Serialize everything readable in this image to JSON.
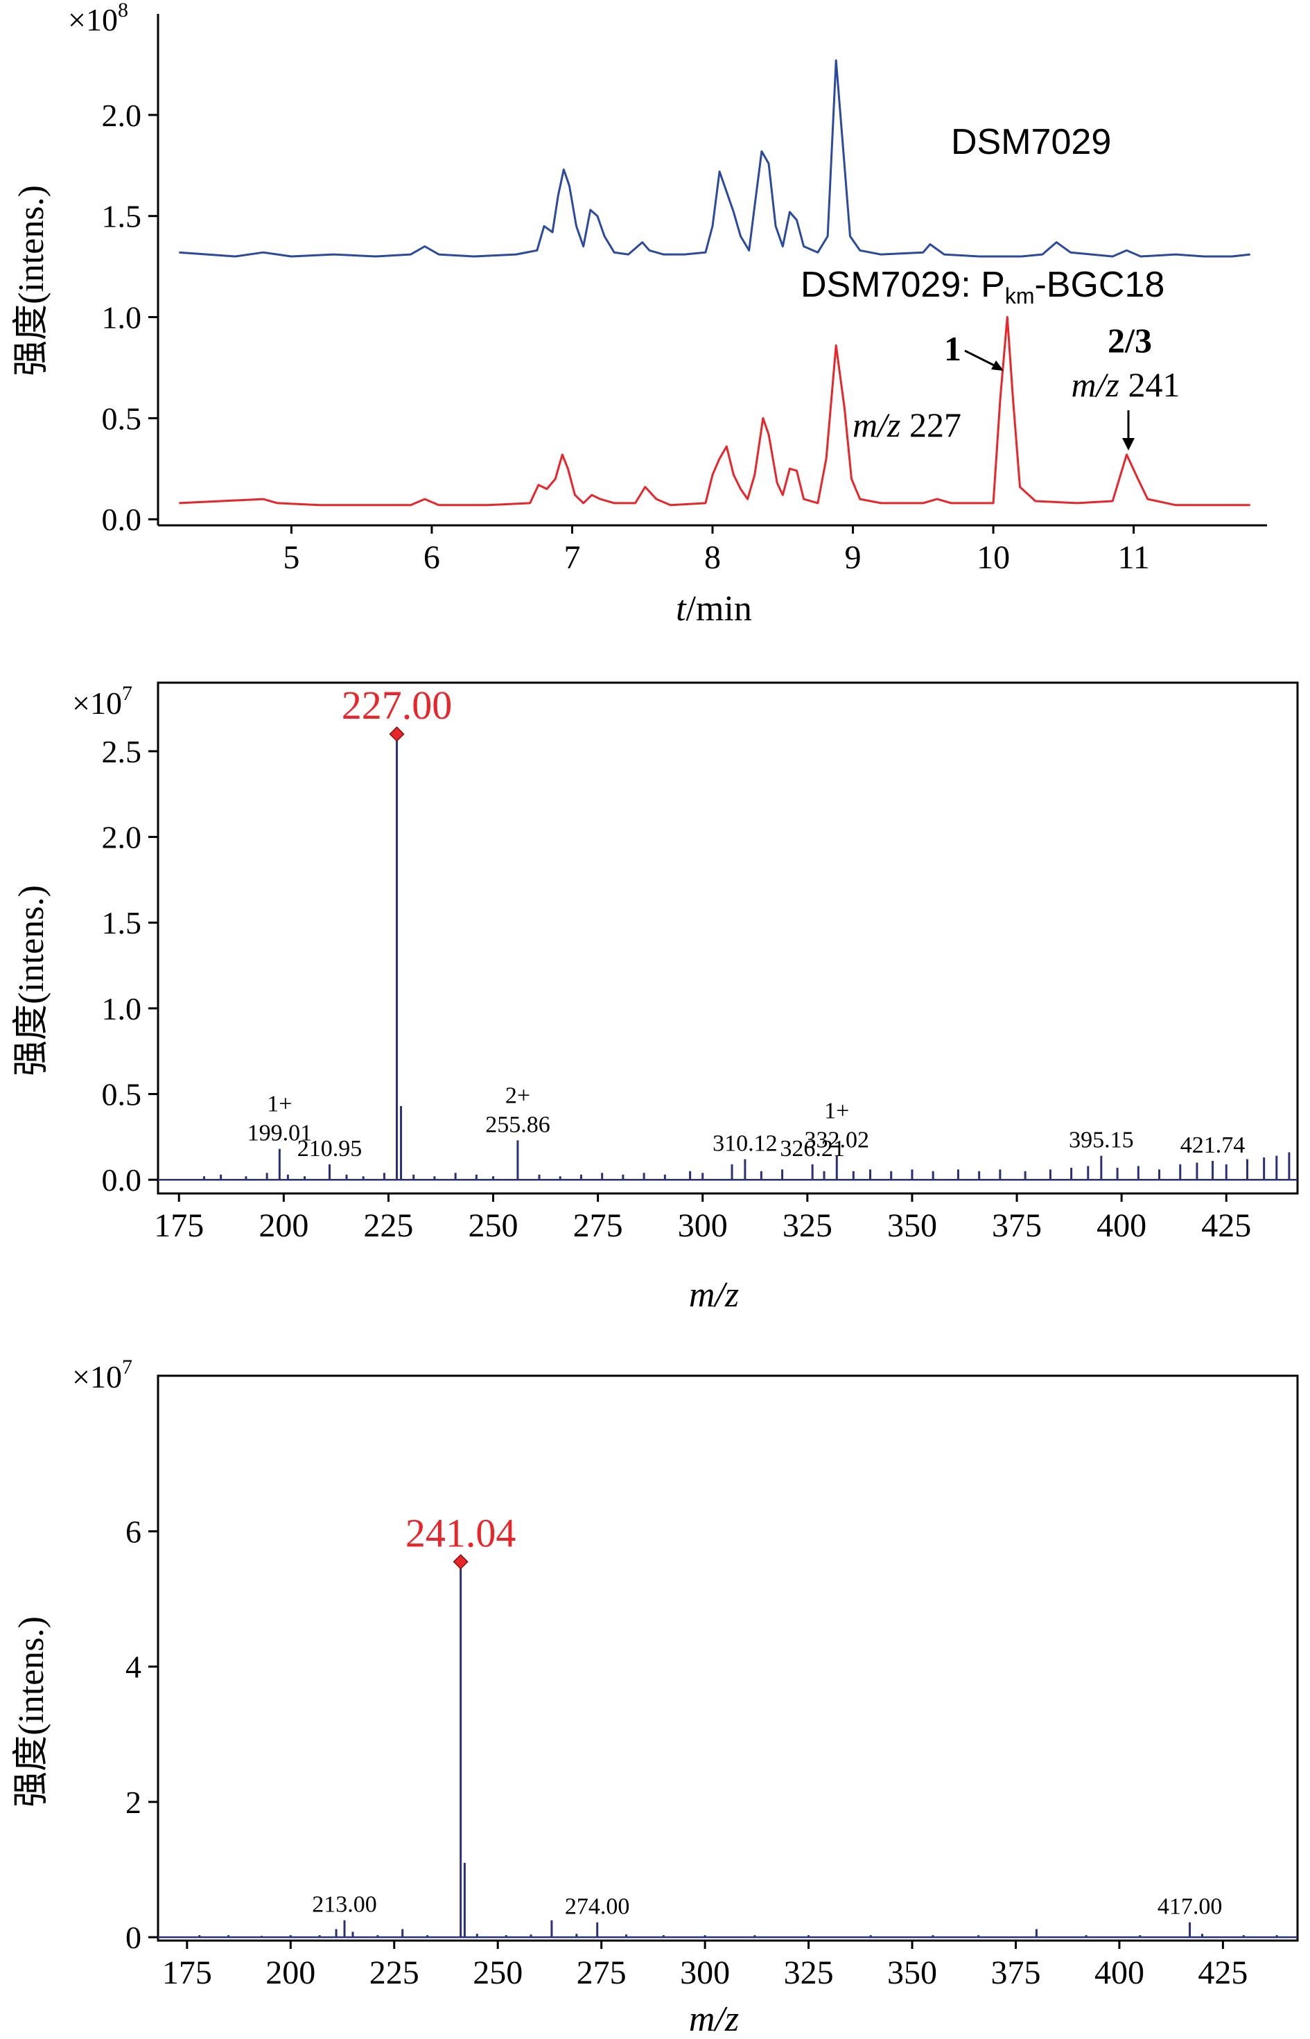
{
  "colors": {
    "blue": "#2b4a9e",
    "red": "#e8262a",
    "axis": "#000000",
    "spectrum": "#2a2f7a",
    "peak_marker": "#e8262a"
  },
  "chart_data": [
    {
      "type": "line",
      "title": "",
      "xlabel_italic": "t",
      "xlabel_rest": "/min",
      "ylabel": "强度(intens.)",
      "y_multiplier_base": "×10",
      "y_multiplier_exp": "8",
      "xlim": [
        4.05,
        11.95
      ],
      "ylim": [
        -0.03,
        2.5
      ],
      "x_ticks": [
        5,
        6,
        7,
        8,
        9,
        10,
        11
      ],
      "y_ticks": [
        0.0,
        0.5,
        1.0,
        1.5,
        2.0
      ],
      "y_tick_labels": [
        "0.0",
        "0.5",
        "1.0",
        "1.5",
        "2.0"
      ],
      "series": [
        {
          "name": "DSM7029",
          "color": "#2b4a9e",
          "points": [
            [
              4.2,
              1.32
            ],
            [
              4.4,
              1.31
            ],
            [
              4.6,
              1.3
            ],
            [
              4.8,
              1.32
            ],
            [
              5.0,
              1.3
            ],
            [
              5.3,
              1.31
            ],
            [
              5.6,
              1.3
            ],
            [
              5.85,
              1.31
            ],
            [
              5.95,
              1.35
            ],
            [
              6.05,
              1.31
            ],
            [
              6.3,
              1.3
            ],
            [
              6.6,
              1.31
            ],
            [
              6.75,
              1.33
            ],
            [
              6.8,
              1.45
            ],
            [
              6.86,
              1.42
            ],
            [
              6.9,
              1.6
            ],
            [
              6.94,
              1.73
            ],
            [
              6.98,
              1.65
            ],
            [
              7.03,
              1.45
            ],
            [
              7.08,
              1.35
            ],
            [
              7.13,
              1.53
            ],
            [
              7.18,
              1.5
            ],
            [
              7.23,
              1.4
            ],
            [
              7.3,
              1.32
            ],
            [
              7.4,
              1.31
            ],
            [
              7.5,
              1.37
            ],
            [
              7.55,
              1.33
            ],
            [
              7.65,
              1.31
            ],
            [
              7.8,
              1.31
            ],
            [
              7.95,
              1.32
            ],
            [
              8.0,
              1.45
            ],
            [
              8.05,
              1.72
            ],
            [
              8.1,
              1.62
            ],
            [
              8.15,
              1.52
            ],
            [
              8.2,
              1.4
            ],
            [
              8.26,
              1.33
            ],
            [
              8.3,
              1.55
            ],
            [
              8.35,
              1.82
            ],
            [
              8.4,
              1.76
            ],
            [
              8.45,
              1.45
            ],
            [
              8.5,
              1.35
            ],
            [
              8.55,
              1.52
            ],
            [
              8.6,
              1.48
            ],
            [
              8.65,
              1.35
            ],
            [
              8.75,
              1.32
            ],
            [
              8.82,
              1.4
            ],
            [
              8.88,
              2.27
            ],
            [
              8.94,
              1.75
            ],
            [
              8.98,
              1.4
            ],
            [
              9.05,
              1.33
            ],
            [
              9.2,
              1.31
            ],
            [
              9.5,
              1.32
            ],
            [
              9.55,
              1.36
            ],
            [
              9.65,
              1.31
            ],
            [
              9.9,
              1.3
            ],
            [
              10.2,
              1.3
            ],
            [
              10.35,
              1.31
            ],
            [
              10.45,
              1.37
            ],
            [
              10.55,
              1.32
            ],
            [
              10.7,
              1.31
            ],
            [
              10.85,
              1.3
            ],
            [
              10.95,
              1.33
            ],
            [
              11.05,
              1.3
            ],
            [
              11.3,
              1.31
            ],
            [
              11.5,
              1.3
            ],
            [
              11.7,
              1.3
            ],
            [
              11.83,
              1.31
            ]
          ]
        },
        {
          "name": "DSM7029: Pkm-BGC18",
          "color": "#e8262a",
          "points": [
            [
              4.2,
              0.08
            ],
            [
              4.5,
              0.09
            ],
            [
              4.8,
              0.1
            ],
            [
              4.9,
              0.08
            ],
            [
              5.2,
              0.07
            ],
            [
              5.6,
              0.07
            ],
            [
              5.85,
              0.07
            ],
            [
              5.95,
              0.1
            ],
            [
              6.05,
              0.07
            ],
            [
              6.4,
              0.07
            ],
            [
              6.7,
              0.08
            ],
            [
              6.76,
              0.17
            ],
            [
              6.82,
              0.15
            ],
            [
              6.88,
              0.2
            ],
            [
              6.93,
              0.32
            ],
            [
              6.97,
              0.25
            ],
            [
              7.02,
              0.12
            ],
            [
              7.08,
              0.08
            ],
            [
              7.14,
              0.12
            ],
            [
              7.2,
              0.1
            ],
            [
              7.3,
              0.08
            ],
            [
              7.45,
              0.08
            ],
            [
              7.52,
              0.16
            ],
            [
              7.6,
              0.1
            ],
            [
              7.7,
              0.07
            ],
            [
              7.95,
              0.08
            ],
            [
              8.0,
              0.22
            ],
            [
              8.05,
              0.3
            ],
            [
              8.1,
              0.36
            ],
            [
              8.15,
              0.22
            ],
            [
              8.2,
              0.15
            ],
            [
              8.25,
              0.1
            ],
            [
              8.3,
              0.22
            ],
            [
              8.36,
              0.5
            ],
            [
              8.4,
              0.42
            ],
            [
              8.46,
              0.18
            ],
            [
              8.5,
              0.12
            ],
            [
              8.55,
              0.25
            ],
            [
              8.6,
              0.24
            ],
            [
              8.65,
              0.1
            ],
            [
              8.75,
              0.08
            ],
            [
              8.81,
              0.3
            ],
            [
              8.88,
              0.86
            ],
            [
              8.94,
              0.55
            ],
            [
              8.99,
              0.2
            ],
            [
              9.05,
              0.1
            ],
            [
              9.2,
              0.08
            ],
            [
              9.5,
              0.08
            ],
            [
              9.6,
              0.1
            ],
            [
              9.7,
              0.08
            ],
            [
              10.0,
              0.08
            ],
            [
              10.05,
              0.6
            ],
            [
              10.1,
              1.0
            ],
            [
              10.14,
              0.6
            ],
            [
              10.19,
              0.16
            ],
            [
              10.3,
              0.09
            ],
            [
              10.6,
              0.08
            ],
            [
              10.85,
              0.09
            ],
            [
              10.95,
              0.32
            ],
            [
              11.03,
              0.2
            ],
            [
              11.1,
              0.1
            ],
            [
              11.3,
              0.07
            ],
            [
              11.6,
              0.07
            ],
            [
              11.83,
              0.07
            ]
          ]
        }
      ],
      "series_labels": {
        "blue": "DSM7029",
        "red_main": "DSM7029: P",
        "red_sub": "km",
        "red_tail": "-BGC18"
      },
      "annotations": {
        "peak1_number": "1",
        "peak1_mz_italic": "m/z",
        "peak1_mz_value": " 227",
        "peak23_number": "2/3",
        "peak23_mz_italic": "m/z",
        "peak23_mz_value": " 241"
      }
    },
    {
      "type": "bar",
      "title": "",
      "xlabel": "m/z",
      "ylabel": "强度(intens.)",
      "y_multiplier_base": "×10",
      "y_multiplier_exp": "7",
      "xlim": [
        170,
        442
      ],
      "ylim": [
        -0.08,
        2.9
      ],
      "x_ticks": [
        175,
        200,
        225,
        250,
        275,
        300,
        325,
        350,
        375,
        400,
        425
      ],
      "y_ticks": [
        0.0,
        0.5,
        1.0,
        1.5,
        2.0,
        2.5
      ],
      "y_tick_labels": [
        "0.0",
        "0.5",
        "1.0",
        "1.5",
        "2.0",
        "2.5"
      ],
      "peaks": [
        [
          181,
          0.02
        ],
        [
          185,
          0.03
        ],
        [
          191,
          0.02
        ],
        [
          196,
          0.04
        ],
        [
          199.01,
          0.18
        ],
        [
          201,
          0.03
        ],
        [
          205,
          0.02
        ],
        [
          210.95,
          0.09
        ],
        [
          215,
          0.03
        ],
        [
          219,
          0.02
        ],
        [
          224,
          0.04
        ],
        [
          227.0,
          2.6
        ],
        [
          228,
          0.43
        ],
        [
          231,
          0.03
        ],
        [
          236,
          0.02
        ],
        [
          241,
          0.04
        ],
        [
          246,
          0.03
        ],
        [
          250,
          0.02
        ],
        [
          255.86,
          0.23
        ],
        [
          261,
          0.03
        ],
        [
          266,
          0.02
        ],
        [
          271,
          0.03
        ],
        [
          276,
          0.04
        ],
        [
          281,
          0.03
        ],
        [
          286,
          0.04
        ],
        [
          291,
          0.03
        ],
        [
          297,
          0.05
        ],
        [
          300,
          0.04
        ],
        [
          307,
          0.09
        ],
        [
          310.12,
          0.12
        ],
        [
          314,
          0.05
        ],
        [
          319,
          0.06
        ],
        [
          326.21,
          0.09
        ],
        [
          329,
          0.05
        ],
        [
          332.02,
          0.14
        ],
        [
          336,
          0.05
        ],
        [
          340,
          0.06
        ],
        [
          345,
          0.05
        ],
        [
          350,
          0.06
        ],
        [
          355,
          0.05
        ],
        [
          361,
          0.06
        ],
        [
          366,
          0.05
        ],
        [
          371,
          0.06
        ],
        [
          377,
          0.05
        ],
        [
          383,
          0.06
        ],
        [
          388,
          0.07
        ],
        [
          392,
          0.08
        ],
        [
          395.15,
          0.14
        ],
        [
          399,
          0.07
        ],
        [
          404,
          0.08
        ],
        [
          409,
          0.06
        ],
        [
          414,
          0.09
        ],
        [
          418,
          0.1
        ],
        [
          421.74,
          0.11
        ],
        [
          425,
          0.09
        ],
        [
          430,
          0.12
        ],
        [
          434,
          0.13
        ],
        [
          437,
          0.14
        ],
        [
          440,
          0.16
        ]
      ],
      "base_peak": {
        "x": 227.0,
        "y": 2.6,
        "label": "227.00"
      },
      "peak_labels": [
        {
          "x": 199.01,
          "y": 0.18,
          "charge": "1+",
          "label": "199.01"
        },
        {
          "x": 210.95,
          "y": 0.09,
          "charge": "",
          "label": "210.95"
        },
        {
          "x": 255.86,
          "y": 0.23,
          "charge": "2+",
          "label": "255.86"
        },
        {
          "x": 310.12,
          "y": 0.12,
          "charge": "",
          "label": "310.12"
        },
        {
          "x": 326.21,
          "y": 0.09,
          "charge": "",
          "label": "326.21"
        },
        {
          "x": 332.02,
          "y": 0.14,
          "charge": "1+",
          "label": "332.02"
        },
        {
          "x": 395.15,
          "y": 0.14,
          "charge": "",
          "label": "395.15"
        },
        {
          "x": 421.74,
          "y": 0.11,
          "charge": "",
          "label": "421.74"
        }
      ]
    },
    {
      "type": "bar",
      "title": "",
      "xlabel": "m/z",
      "ylabel": "强度(intens.)",
      "y_multiplier_base": "×10",
      "y_multiplier_exp": "7",
      "xlim": [
        168,
        443
      ],
      "ylim": [
        -0.05,
        8.3
      ],
      "x_ticks": [
        175,
        200,
        225,
        250,
        275,
        300,
        325,
        350,
        375,
        400,
        425
      ],
      "y_ticks": [
        0,
        2,
        4,
        6
      ],
      "y_tick_labels": [
        "0",
        "2",
        "4",
        "6"
      ],
      "peaks": [
        [
          178,
          0.03
        ],
        [
          185,
          0.03
        ],
        [
          193,
          0.02
        ],
        [
          200,
          0.03
        ],
        [
          207,
          0.03
        ],
        [
          211,
          0.12
        ],
        [
          213.0,
          0.25
        ],
        [
          215,
          0.08
        ],
        [
          221,
          0.03
        ],
        [
          227,
          0.12
        ],
        [
          233,
          0.03
        ],
        [
          241.04,
          5.55
        ],
        [
          242,
          1.1
        ],
        [
          245,
          0.05
        ],
        [
          252,
          0.03
        ],
        [
          258,
          0.04
        ],
        [
          263,
          0.25
        ],
        [
          269,
          0.05
        ],
        [
          274.0,
          0.22
        ],
        [
          281,
          0.04
        ],
        [
          290,
          0.03
        ],
        [
          300,
          0.03
        ],
        [
          312,
          0.03
        ],
        [
          325,
          0.03
        ],
        [
          340,
          0.03
        ],
        [
          355,
          0.03
        ],
        [
          366,
          0.03
        ],
        [
          380,
          0.12
        ],
        [
          392,
          0.03
        ],
        [
          405,
          0.03
        ],
        [
          417.0,
          0.22
        ],
        [
          420,
          0.05
        ],
        [
          430,
          0.03
        ],
        [
          438,
          0.03
        ]
      ],
      "base_peak": {
        "x": 241.04,
        "y": 5.55,
        "label": "241.04"
      },
      "peak_labels": [
        {
          "x": 213.0,
          "y": 0.25,
          "charge": "",
          "label": "213.00"
        },
        {
          "x": 274.0,
          "y": 0.22,
          "charge": "",
          "label": "274.00"
        },
        {
          "x": 417.0,
          "y": 0.22,
          "charge": "",
          "label": "417.00"
        }
      ]
    }
  ]
}
